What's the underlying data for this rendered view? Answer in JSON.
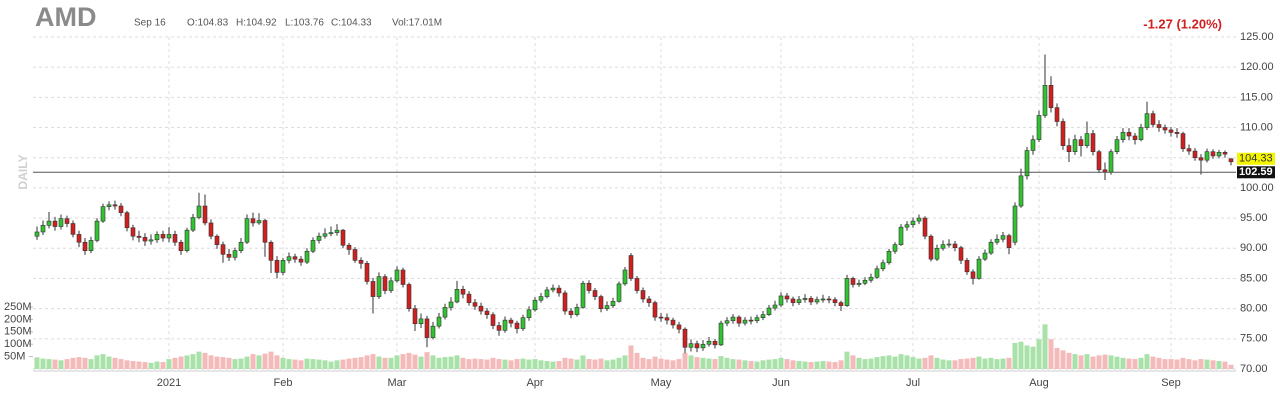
{
  "chart_data": {
    "type": "candlestick",
    "title": "AMD",
    "date_label": "Sep 16",
    "legend_text": [
      "O:104.83",
      "H:104.92",
      "L:103.76",
      "C:104.33",
      "Vol:17.01M"
    ],
    "change_label": "-1.27 (1.20%)",
    "side_label": "DAILY",
    "up_color": "#2fc42f",
    "down_color": "#d11f1f",
    "up_volume_color": "#a9e2a9",
    "down_volume_color": "#f4b9b9",
    "ylim": [
      70,
      125
    ],
    "yticks": [
      {
        "value": 125,
        "label": "125.00"
      },
      {
        "value": 120,
        "label": "120.00"
      },
      {
        "value": 115,
        "label": "115.00"
      },
      {
        "value": 110,
        "label": "110.00"
      },
      {
        "value": 105,
        "label": "105.00"
      },
      {
        "value": 100,
        "label": "100.00"
      },
      {
        "value": 95,
        "label": "95.00"
      },
      {
        "value": 90,
        "label": "90.00"
      },
      {
        "value": 85,
        "label": "85.00"
      },
      {
        "value": 80,
        "label": "80.00"
      },
      {
        "value": 75,
        "label": "75.00"
      },
      {
        "value": 70,
        "label": "70.00"
      }
    ],
    "volume_ylim": [
      0,
      250
    ],
    "volume_ticks": [
      {
        "value": 50,
        "label": "50M"
      },
      {
        "value": 100,
        "label": "100M"
      },
      {
        "value": 150,
        "label": "150M"
      },
      {
        "value": 200,
        "label": "200M"
      },
      {
        "value": 250,
        "label": "250M"
      }
    ],
    "price_tag": {
      "value": 104.33,
      "label": "104.33"
    },
    "hline": {
      "value": 102.59,
      "label": "102.59"
    },
    "grid": true,
    "categories": [
      null,
      null,
      null,
      null,
      null,
      null,
      null,
      null,
      null,
      null,
      null,
      null,
      null,
      null,
      null,
      null,
      null,
      null,
      null,
      null,
      null,
      null,
      "2021",
      null,
      null,
      null,
      null,
      null,
      null,
      null,
      null,
      null,
      null,
      null,
      null,
      null,
      null,
      null,
      null,
      null,
      null,
      "Feb",
      null,
      null,
      null,
      null,
      null,
      null,
      null,
      null,
      null,
      null,
      null,
      null,
      null,
      null,
      null,
      null,
      null,
      null,
      "Mar",
      null,
      null,
      null,
      null,
      null,
      null,
      null,
      null,
      null,
      null,
      null,
      null,
      null,
      null,
      null,
      null,
      null,
      null,
      null,
      null,
      null,
      null,
      "Apr",
      null,
      null,
      null,
      null,
      null,
      null,
      null,
      null,
      null,
      null,
      null,
      null,
      null,
      null,
      null,
      null,
      null,
      null,
      null,
      null,
      "May",
      null,
      null,
      null,
      null,
      null,
      null,
      null,
      null,
      null,
      null,
      null,
      null,
      null,
      null,
      null,
      null,
      null,
      null,
      null,
      "Jun",
      null,
      null,
      null,
      null,
      null,
      null,
      null,
      null,
      null,
      null,
      null,
      null,
      null,
      null,
      null,
      null,
      null,
      null,
      null,
      null,
      null,
      "Jul",
      null,
      null,
      null,
      null,
      null,
      null,
      null,
      null,
      null,
      null,
      null,
      null,
      null,
      null,
      null,
      null,
      null,
      null,
      null,
      null,
      "Aug",
      null,
      null,
      null,
      null,
      null,
      null,
      null,
      null,
      null,
      null,
      null,
      null,
      null,
      null,
      null,
      null,
      null,
      null,
      null,
      null,
      null,
      "Sep",
      null,
      null,
      null,
      null,
      null,
      null,
      null,
      null,
      null,
      null
    ],
    "open": [
      92.0,
      92.7,
      93.8,
      94.5,
      93.6,
      94.9,
      94.1,
      92.3,
      91.0,
      89.6,
      91.3,
      94.5,
      96.9,
      97.2,
      97.0,
      95.9,
      93.4,
      92.0,
      91.8,
      91.2,
      91.4,
      92.3,
      91.7,
      92.3,
      91.0,
      89.6,
      93.0,
      95.1,
      97.0,
      94.2,
      92.0,
      90.6,
      89.0,
      88.5,
      89.6,
      91.0,
      94.9,
      94.2,
      94.6,
      91.0,
      88.0,
      86.0,
      88.0,
      88.6,
      88.2,
      87.7,
      89.5,
      91.3,
      92.0,
      92.4,
      92.6,
      93.0,
      90.5,
      89.8,
      88.0,
      87.5,
      84.5,
      82.0,
      85.3,
      83.0,
      84.6,
      86.4,
      84.0,
      80.0,
      77.5,
      78.3,
      75.2,
      77.1,
      78.6,
      80.2,
      81.1,
      83.2,
      82.4,
      81.0,
      80.4,
      79.6,
      79.0,
      77.2,
      76.4,
      78.1,
      77.6,
      76.7,
      78.5,
      79.8,
      81.4,
      82.0,
      83.1,
      83.4,
      82.6,
      79.6,
      79.0,
      80.2,
      84.2,
      83.0,
      82.0,
      80.0,
      80.5,
      81.2,
      84.1,
      88.8,
      85.0,
      83.0,
      81.6,
      81.0,
      78.6,
      78.5,
      78.1,
      77.3,
      76.6,
      73.6,
      74.2,
      73.5,
      74.1,
      74.6,
      74.0,
      77.6,
      78.0,
      78.6,
      77.6,
      78.1,
      78.0,
      78.5,
      79.0,
      80.1,
      80.6,
      82.1,
      81.6,
      81.0,
      81.5,
      81.7,
      81.1,
      81.5,
      81.6,
      81.5,
      81.0,
      80.5,
      85.0,
      84.0,
      84.2,
      84.7,
      85.2,
      86.6,
      87.6,
      89.5,
      90.6,
      93.5,
      93.9,
      94.5,
      95.0,
      92.0,
      88.2,
      90.0,
      90.6,
      90.7,
      90.1,
      88.0,
      86.1,
      85.0,
      88.2,
      89.2,
      91.0,
      91.5,
      92.1,
      91.0,
      97.0,
      102.0,
      106.2,
      108.0,
      112.0,
      117.0,
      113.3,
      111.0,
      107.0,
      106.0,
      108.0,
      107.0,
      109.0,
      106.0,
      103.0,
      102.6,
      106.0,
      108.0,
      109.2,
      108.6,
      108.0,
      110.0,
      112.3,
      110.5,
      110.0,
      109.6,
      109.2,
      109.0,
      106.5,
      106.1,
      105.0,
      104.6,
      106.0,
      105.3,
      105.9,
      104.83
    ],
    "high": [
      93.6,
      94.6,
      96.0,
      95.2,
      95.6,
      95.4,
      94.6,
      92.9,
      91.7,
      91.9,
      95.0,
      97.4,
      97.8,
      97.9,
      97.5,
      96.2,
      93.9,
      92.9,
      92.5,
      92.3,
      92.8,
      92.9,
      93.5,
      92.9,
      91.4,
      93.4,
      95.7,
      99.2,
      98.9,
      94.8,
      92.3,
      91.1,
      89.9,
      90.1,
      91.7,
      95.6,
      95.9,
      95.8,
      94.9,
      91.3,
      88.7,
      88.4,
      89.3,
      89.1,
      88.7,
      90.0,
      91.8,
      92.6,
      93.3,
      93.6,
      94.0,
      93.2,
      90.9,
      90.2,
      88.5,
      87.9,
      85.1,
      86.0,
      85.7,
      85.2,
      87.0,
      86.8,
      84.3,
      80.6,
      79.2,
      78.8,
      77.8,
      79.3,
      80.8,
      81.9,
      84.6,
      83.8,
      82.9,
      81.6,
      81.0,
      80.1,
      79.4,
      77.8,
      78.7,
      78.5,
      78.0,
      79.0,
      80.4,
      81.9,
      82.6,
      83.6,
      84.0,
      83.9,
      83.0,
      80.1,
      80.8,
      84.6,
      84.7,
      83.4,
      82.3,
      81.2,
      81.8,
      84.5,
      86.9,
      89.2,
      85.4,
      83.5,
      82.1,
      81.3,
      79.3,
      79.2,
      78.5,
      77.8,
      76.9,
      74.9,
      74.7,
      74.8,
      75.3,
      75.0,
      78.0,
      78.6,
      79.1,
      78.9,
      78.6,
      78.7,
      79.0,
      79.6,
      80.6,
      81.3,
      82.7,
      82.6,
      82.0,
      82.1,
      82.4,
      82.1,
      82.0,
      82.3,
      82.1,
      81.9,
      81.3,
      85.6,
      85.3,
      84.8,
      85.2,
      85.8,
      87.1,
      88.1,
      89.9,
      91.0,
      94.0,
      94.5,
      95.1,
      95.6,
      95.3,
      92.3,
      90.6,
      91.3,
      91.5,
      91.2,
      90.4,
      88.4,
      86.5,
      88.7,
      89.8,
      91.5,
      92.3,
      92.7,
      92.4,
      97.6,
      103.2,
      106.8,
      108.7,
      112.8,
      122.1,
      118.5,
      114.0,
      111.5,
      108.2,
      108.8,
      108.6,
      111.0,
      109.6,
      106.3,
      104.2,
      106.4,
      108.6,
      109.9,
      109.9,
      109.1,
      110.6,
      114.3,
      112.8,
      111.2,
      110.5,
      110.1,
      109.9,
      109.3,
      107.2,
      106.6,
      105.6,
      106.5,
      106.4,
      106.3,
      106.2,
      104.92
    ],
    "low": [
      91.4,
      92.2,
      93.3,
      92.9,
      93.1,
      93.5,
      91.8,
      90.2,
      88.9,
      89.2,
      91.0,
      94.2,
      96.3,
      96.4,
      95.3,
      92.8,
      91.3,
      91.0,
      90.4,
      90.6,
      90.9,
      91.1,
      91.0,
      90.4,
      88.9,
      89.3,
      92.7,
      94.8,
      93.8,
      91.5,
      89.9,
      87.6,
      87.9,
      88.0,
      89.2,
      90.7,
      93.6,
      93.9,
      88.6,
      85.9,
      85.0,
      85.5,
      87.5,
      87.6,
      87.1,
      87.4,
      89.2,
      90.8,
      91.6,
      92.0,
      92.1,
      90.0,
      88.9,
      87.6,
      86.6,
      84.0,
      79.2,
      81.6,
      82.4,
      82.6,
      84.3,
      83.5,
      79.5,
      76.3,
      76.8,
      73.6,
      74.9,
      76.7,
      78.2,
      79.7,
      80.9,
      81.7,
      80.5,
      79.8,
      79.0,
      78.3,
      76.6,
      75.5,
      76.0,
      76.9,
      75.9,
      76.3,
      78.0,
      79.5,
      81.0,
      81.7,
      82.7,
      82.0,
      79.0,
      78.4,
      78.7,
      80.0,
      82.5,
      81.4,
      79.4,
      79.6,
      80.1,
      81.0,
      83.8,
      84.6,
      82.5,
      81.0,
      80.3,
      78.0,
      77.8,
      77.4,
      76.7,
      75.9,
      72.6,
      72.9,
      72.8,
      73.0,
      73.7,
      73.4,
      73.8,
      77.1,
      77.5,
      77.0,
      77.2,
      77.4,
      77.6,
      78.1,
      78.8,
      79.7,
      80.3,
      81.0,
      80.4,
      80.6,
      81.0,
      80.6,
      80.7,
      81.0,
      80.9,
      80.4,
      79.6,
      80.3,
      83.5,
      83.6,
      83.9,
      84.3,
      84.9,
      86.2,
      87.3,
      89.1,
      90.4,
      92.9,
      93.4,
      94.0,
      91.5,
      87.8,
      87.9,
      89.6,
      90.1,
      89.5,
      87.4,
      85.6,
      84.0,
      84.8,
      87.9,
      88.9,
      90.6,
      91.0,
      89.0,
      90.5,
      96.7,
      101.4,
      105.5,
      107.6,
      111.6,
      112.5,
      110.2,
      106.3,
      104.3,
      105.5,
      105.2,
      106.6,
      105.4,
      102.5,
      101.3,
      102.2,
      105.6,
      107.5,
      107.9,
      107.2,
      107.7,
      109.6,
      110.0,
      109.3,
      109.0,
      108.5,
      108.3,
      106.0,
      105.5,
      104.5,
      102.2,
      104.2,
      104.8,
      104.9,
      105.0,
      103.76
    ],
    "close": [
      92.7,
      93.8,
      94.5,
      93.6,
      94.9,
      94.1,
      92.3,
      91.0,
      89.6,
      91.3,
      94.5,
      96.9,
      97.2,
      97.0,
      95.9,
      93.4,
      92.0,
      91.8,
      91.2,
      91.4,
      92.3,
      91.7,
      92.3,
      91.0,
      89.6,
      93.0,
      95.1,
      97.0,
      94.2,
      92.0,
      90.6,
      89.0,
      88.5,
      89.6,
      91.0,
      94.9,
      94.2,
      94.6,
      91.0,
      88.0,
      86.0,
      88.0,
      88.6,
      88.2,
      87.7,
      89.5,
      91.3,
      92.0,
      92.4,
      92.6,
      93.0,
      90.5,
      89.8,
      88.0,
      87.5,
      84.5,
      82.0,
      85.3,
      83.0,
      84.6,
      86.4,
      84.0,
      80.0,
      77.5,
      78.3,
      75.2,
      77.1,
      78.6,
      80.2,
      81.1,
      83.2,
      82.4,
      81.0,
      80.4,
      79.6,
      79.0,
      77.2,
      76.4,
      78.1,
      77.6,
      76.7,
      78.5,
      79.8,
      81.4,
      82.0,
      83.1,
      83.4,
      82.6,
      79.6,
      79.0,
      80.2,
      84.2,
      83.0,
      82.0,
      80.0,
      80.5,
      81.2,
      84.1,
      86.4,
      85.0,
      83.0,
      81.6,
      81.0,
      78.6,
      78.5,
      78.1,
      77.3,
      76.6,
      73.6,
      74.2,
      73.5,
      74.1,
      74.6,
      74.0,
      77.6,
      78.0,
      78.6,
      77.6,
      78.1,
      78.0,
      78.5,
      79.0,
      80.1,
      80.6,
      82.1,
      81.6,
      81.0,
      81.5,
      81.7,
      81.1,
      81.5,
      81.6,
      81.5,
      81.0,
      80.5,
      85.0,
      84.0,
      84.2,
      84.7,
      85.2,
      86.6,
      87.6,
      89.5,
      90.6,
      93.5,
      93.9,
      94.5,
      95.0,
      92.0,
      88.2,
      90.0,
      90.6,
      90.7,
      90.1,
      88.0,
      86.1,
      85.0,
      88.2,
      89.2,
      91.0,
      91.5,
      92.1,
      90.1,
      97.0,
      102.0,
      106.2,
      108.0,
      112.0,
      117.0,
      113.3,
      111.0,
      107.0,
      106.0,
      108.0,
      107.0,
      109.0,
      106.0,
      103.0,
      102.6,
      106.0,
      108.0,
      109.2,
      108.6,
      108.0,
      110.0,
      112.3,
      110.5,
      110.0,
      109.6,
      109.2,
      109.0,
      106.5,
      106.1,
      105.0,
      104.6,
      106.0,
      105.3,
      105.9,
      105.6,
      104.33
    ],
    "volume": [
      47,
      42,
      40,
      38,
      35,
      40,
      45,
      48,
      45,
      40,
      55,
      60,
      50,
      45,
      40,
      35,
      32,
      30,
      28,
      25,
      30,
      28,
      40,
      45,
      50,
      55,
      60,
      70,
      65,
      55,
      50,
      48,
      45,
      40,
      42,
      50,
      60,
      55,
      62,
      70,
      55,
      45,
      40,
      38,
      35,
      42,
      40,
      38,
      35,
      30,
      35,
      38,
      42,
      45,
      48,
      55,
      60,
      50,
      45,
      45,
      55,
      60,
      65,
      58,
      50,
      68,
      55,
      45,
      48,
      50,
      55,
      45,
      40,
      42,
      40,
      38,
      45,
      40,
      38,
      35,
      40,
      42,
      38,
      40,
      35,
      32,
      30,
      32,
      45,
      42,
      38,
      55,
      40,
      38,
      42,
      35,
      38,
      45,
      55,
      95,
      65,
      45,
      40,
      50,
      42,
      38,
      35,
      40,
      65,
      55,
      48,
      45,
      42,
      40,
      52,
      45,
      40,
      38,
      35,
      32,
      30,
      35,
      38,
      40,
      45,
      40,
      35,
      32,
      30,
      28,
      30,
      32,
      30,
      28,
      35,
      70,
      55,
      45,
      40,
      42,
      48,
      52,
      55,
      50,
      60,
      55,
      48,
      42,
      45,
      55,
      45,
      38,
      35,
      35,
      40,
      42,
      45,
      50,
      42,
      45,
      40,
      42,
      45,
      105,
      110,
      95,
      90,
      120,
      180,
      120,
      85,
      75,
      65,
      60,
      55,
      60,
      50,
      55,
      58,
      55,
      50,
      45,
      42,
      40,
      45,
      60,
      50,
      45,
      40,
      40,
      38,
      45,
      40,
      35,
      40,
      38,
      35,
      32,
      30,
      17.01
    ]
  }
}
